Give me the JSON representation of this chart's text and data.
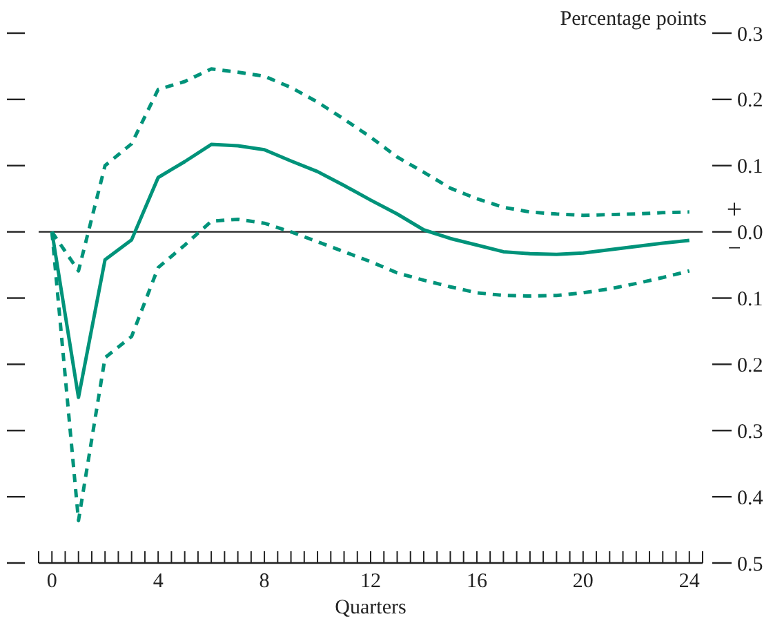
{
  "chart_data": {
    "type": "line",
    "ylabel": "Percentage points",
    "xlabel": "Quarters",
    "x": [
      0,
      1,
      2,
      3,
      4,
      5,
      6,
      7,
      8,
      9,
      10,
      11,
      12,
      13,
      14,
      15,
      16,
      17,
      18,
      19,
      20,
      21,
      22,
      23,
      24
    ],
    "series": [
      {
        "color": "#00937a",
        "line_style": "dashed",
        "values": [
          0,
          -0.059,
          0.1,
          0.133,
          0.215,
          0.227,
          0.246,
          0.241,
          0.235,
          0.218,
          0.196,
          0.17,
          0.143,
          0.113,
          0.09,
          0.066,
          0.05,
          0.037,
          0.03,
          0.027,
          0.025,
          0.026,
          0.027,
          0.029,
          0.03
        ]
      },
      {
        "color": "#00937a",
        "line_style": "solid",
        "values": [
          0,
          -0.25,
          -0.042,
          -0.012,
          0.082,
          0.106,
          0.132,
          0.13,
          0.124,
          0.107,
          0.091,
          0.07,
          0.048,
          0.027,
          0.003,
          -0.01,
          -0.02,
          -0.03,
          -0.033,
          -0.034,
          -0.032,
          -0.027,
          -0.022,
          -0.017,
          -0.013
        ]
      },
      {
        "color": "#00937a",
        "line_style": "dashed",
        "values": [
          0,
          -0.436,
          -0.19,
          -0.158,
          -0.054,
          -0.02,
          0.016,
          0.019,
          0.013,
          0,
          -0.015,
          -0.03,
          -0.045,
          -0.062,
          -0.073,
          -0.083,
          -0.092,
          -0.096,
          -0.097,
          -0.096,
          -0.092,
          -0.086,
          -0.078,
          -0.069,
          -0.059
        ]
      }
    ],
    "xlim": [
      -0.5,
      24.5
    ],
    "xticks": [
      {
        "value": -0.5,
        "label": null
      },
      0,
      {
        "value": 0.5,
        "label": null
      },
      {
        "value": 1,
        "label": null
      },
      {
        "value": 1.5,
        "label": null
      },
      {
        "value": 2,
        "label": null
      },
      {
        "value": 2.5,
        "label": null
      },
      {
        "value": 3,
        "label": null
      },
      {
        "value": 3.5,
        "label": null
      },
      4,
      {
        "value": 4.5,
        "label": null
      },
      {
        "value": 5,
        "label": null
      },
      {
        "value": 5.5,
        "label": null
      },
      {
        "value": 6,
        "label": null
      },
      {
        "value": 6.5,
        "label": null
      },
      {
        "value": 7,
        "label": null
      },
      {
        "value": 7.5,
        "label": null
      },
      8,
      {
        "value": 8.5,
        "label": null
      },
      {
        "value": 9,
        "label": null
      },
      {
        "value": 9.5,
        "label": null
      },
      {
        "value": 10,
        "label": null
      },
      {
        "value": 10.5,
        "label": null
      },
      {
        "value": 11,
        "label": null
      },
      {
        "value": 11.5,
        "label": null
      },
      12,
      {
        "value": 12.5,
        "label": null
      },
      {
        "value": 13,
        "label": null
      },
      {
        "value": 13.5,
        "label": null
      },
      {
        "value": 14,
        "label": null
      },
      {
        "value": 14.5,
        "label": null
      },
      {
        "value": 15,
        "label": null
      },
      {
        "value": 15.5,
        "label": null
      },
      16,
      {
        "value": 16.5,
        "label": null
      },
      {
        "value": 17,
        "label": null
      },
      {
        "value": 17.5,
        "label": null
      },
      {
        "value": 18,
        "label": null
      },
      {
        "value": 18.5,
        "label": null
      },
      {
        "value": 19,
        "label": null
      },
      {
        "value": 19.5,
        "label": null
      },
      20,
      {
        "value": 20.5,
        "label": null
      },
      {
        "value": 21,
        "label": null
      },
      {
        "value": 21.5,
        "label": null
      },
      {
        "value": 22,
        "label": null
      },
      {
        "value": 22.5,
        "label": null
      },
      {
        "value": 23,
        "label": null
      },
      {
        "value": 23.5,
        "label": null
      },
      24,
      {
        "value": 24.5,
        "label": null
      }
    ],
    "ylim": [
      -0.5,
      0.3
    ],
    "yticks": [
      {
        "value": 0.3,
        "label": "0.3"
      },
      {
        "value": 0.2,
        "label": "0.2"
      },
      {
        "value": 0.1,
        "label": "0.1"
      },
      {
        "value": 0,
        "label": "0.0"
      },
      {
        "value": -0.1,
        "label": "0.1"
      },
      {
        "value": -0.2,
        "label": "0.2"
      },
      {
        "value": -0.3,
        "label": "0.3"
      },
      {
        "value": -0.4,
        "label": "0.4"
      },
      {
        "value": -0.5,
        "label": "0.5"
      }
    ],
    "ref_lines": [
      {
        "axis": "y",
        "value": 0,
        "color": "#222222"
      }
    ],
    "annotations": [
      "+",
      "−"
    ]
  }
}
